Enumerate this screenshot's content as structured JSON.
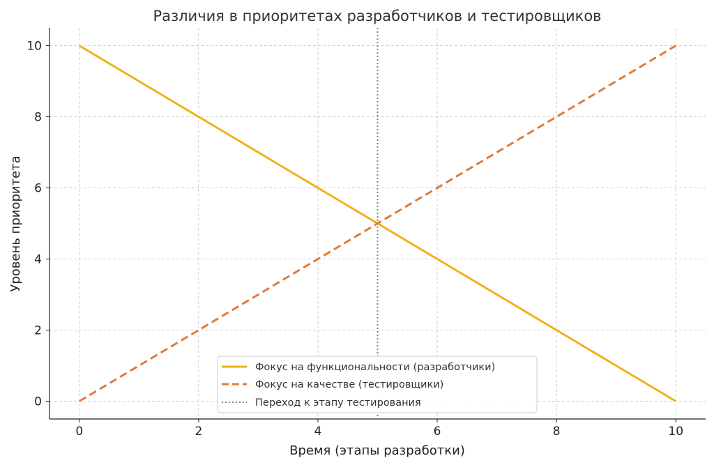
{
  "chart_data": {
    "type": "line",
    "title": "Различия в приоритетах разработчиков и тестировщиков",
    "xlabel": "Время (этапы разработки)",
    "ylabel": "Уровень приоритета",
    "xlim": [
      -0.5,
      10.5
    ],
    "ylim": [
      -0.5,
      10.5
    ],
    "xticks": [
      0,
      2,
      4,
      6,
      8,
      10
    ],
    "yticks": [
      0,
      2,
      4,
      6,
      8,
      10
    ],
    "grid": true,
    "legend_position": "lower-center",
    "series": [
      {
        "name": "Фокус на функциональности (разработчики)",
        "x": [
          0,
          10
        ],
        "y": [
          10,
          0
        ],
        "color": "#f0b21a",
        "style": "solid"
      },
      {
        "name": "Фокус на качестве (тестировщики)",
        "x": [
          0,
          10
        ],
        "y": [
          0,
          10
        ],
        "color": "#e07b39",
        "style": "dashed"
      }
    ],
    "vlines": [
      {
        "name": "Переход к этапу тестирования",
        "x": 5,
        "color": "#808080",
        "style": "dotted"
      }
    ]
  }
}
